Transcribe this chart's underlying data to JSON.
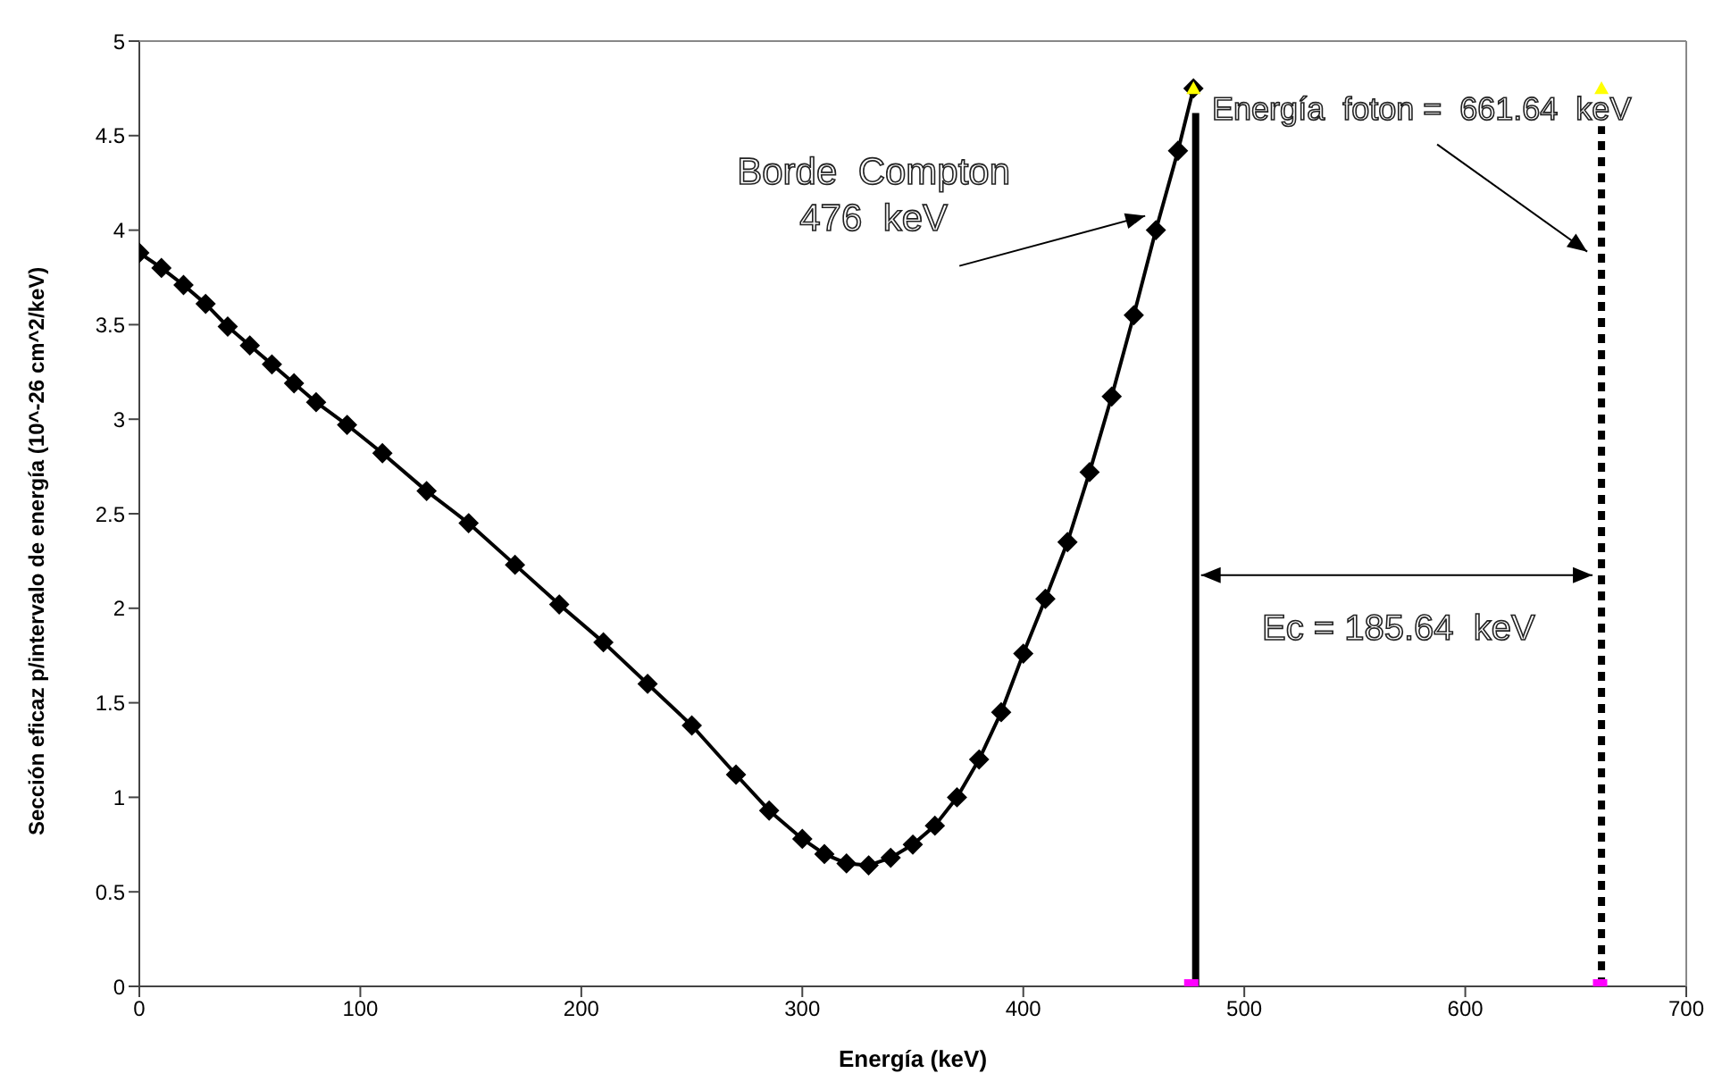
{
  "chart_data": {
    "type": "line",
    "xlabel": "Energía (keV)",
    "ylabel": "Sección eficaz p/intervalo de energía   (10^-26 cm^2/keV)",
    "xlim": [
      0,
      700
    ],
    "xticks": [
      0,
      100,
      200,
      300,
      400,
      500,
      600,
      700
    ],
    "ylim": [
      0,
      5
    ],
    "yticks": [
      0,
      0.5,
      1,
      1.5,
      2,
      2.5,
      3,
      3.5,
      4,
      4.5,
      5
    ],
    "grid": false,
    "series": [
      {
        "marker": "diamond",
        "line_style": "solid",
        "color": "#000000",
        "x": [
          0,
          10,
          20,
          30,
          40,
          50,
          60,
          70,
          80,
          94,
          110,
          130,
          149,
          170,
          190,
          210,
          230,
          250,
          270,
          285,
          300,
          310,
          320,
          330,
          340,
          350,
          360,
          370,
          380,
          390,
          400,
          410,
          420,
          430,
          440,
          450,
          460,
          470,
          477
        ],
        "values": [
          3.88,
          3.8,
          3.71,
          3.61,
          3.49,
          3.39,
          3.29,
          3.19,
          3.09,
          2.97,
          2.82,
          2.62,
          2.45,
          2.23,
          2.02,
          1.82,
          1.6,
          1.38,
          1.12,
          0.93,
          0.78,
          0.7,
          0.65,
          0.64,
          0.68,
          0.75,
          0.85,
          1.0,
          1.2,
          1.45,
          1.76,
          2.05,
          2.35,
          2.72,
          3.12,
          3.55,
          4.0,
          4.42,
          4.75
        ]
      },
      {
        "type": "line",
        "marker": "none",
        "line_style": "solid",
        "color": "#000000",
        "x": [
          478,
          478
        ],
        "values": [
          0,
          4.62
        ]
      },
      {
        "type": "line",
        "marker": "none",
        "line_style": "dashed",
        "color": "#000000",
        "x": [
          661.64,
          661.64
        ],
        "values": [
          0,
          4.55
        ]
      },
      {
        "type": "scatter",
        "marker": "triangle",
        "color": "#ffff00",
        "x": [
          477,
          661.64
        ],
        "values": [
          4.75,
          4.75
        ]
      },
      {
        "type": "scatter",
        "marker": "square",
        "color": "#ff00ff",
        "x": [
          476,
          661
        ],
        "values": [
          0,
          0
        ]
      }
    ],
    "annotations": [
      "Borde  Compton\n476  keV",
      "Energía  foton =  661.64  keV",
      "Ec = 185.64  keV"
    ]
  }
}
